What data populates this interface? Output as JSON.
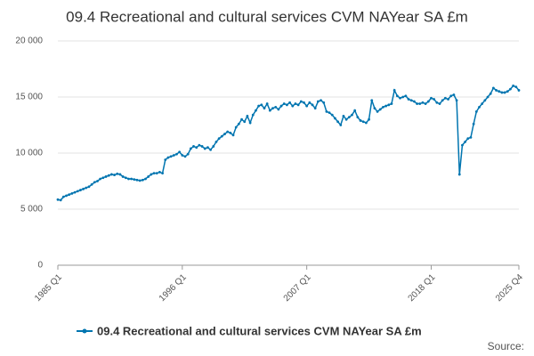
{
  "chart_data": {
    "type": "line",
    "title": "09.4 Recreational and cultural services CVM NAYear SA £m",
    "source": "Source:",
    "categories": [
      "1985 Q1",
      null,
      null,
      null,
      null,
      null,
      null,
      null,
      null,
      null,
      null,
      null,
      null,
      null,
      null,
      null,
      null,
      null,
      null,
      null,
      null,
      null,
      null,
      null,
      null,
      null,
      null,
      null,
      null,
      null,
      null,
      null,
      null,
      null,
      null,
      null,
      null,
      null,
      null,
      null,
      null,
      null,
      null,
      null,
      "1996 Q1",
      null,
      null,
      null,
      null,
      null,
      null,
      null,
      null,
      null,
      null,
      null,
      null,
      null,
      null,
      null,
      null,
      null,
      null,
      null,
      null,
      null,
      null,
      null,
      null,
      null,
      null,
      null,
      null,
      null,
      null,
      null,
      null,
      null,
      null,
      null,
      null,
      null,
      null,
      null,
      null,
      null,
      null,
      null,
      "2007 Q1",
      null,
      null,
      null,
      null,
      null,
      null,
      null,
      null,
      null,
      null,
      null,
      null,
      null,
      null,
      null,
      null,
      null,
      null,
      null,
      null,
      null,
      null,
      null,
      null,
      null,
      null,
      null,
      null,
      null,
      null,
      null,
      null,
      null,
      null,
      null,
      null,
      null,
      null,
      null,
      null,
      null,
      null,
      null,
      "2018 Q1",
      null,
      null,
      null,
      null,
      null,
      null,
      null,
      null,
      null,
      null,
      null,
      null,
      null,
      null,
      null,
      null,
      null,
      null,
      null,
      null,
      null,
      null,
      null,
      null,
      null,
      null,
      null,
      null,
      null,
      null,
      "2025 Q4"
    ],
    "series": [
      {
        "name": "09.4 Recreational and cultural services CVM NAYear SA £m",
        "color": "#0075b0",
        "values": [
          5850,
          5800,
          6100,
          6200,
          6300,
          6400,
          6500,
          6600,
          6700,
          6800,
          6900,
          7000,
          7200,
          7400,
          7500,
          7700,
          7800,
          7900,
          8000,
          8100,
          8050,
          8150,
          8100,
          7900,
          7800,
          7700,
          7700,
          7650,
          7600,
          7550,
          7600,
          7700,
          7900,
          8100,
          8200,
          8200,
          8300,
          8200,
          9400,
          9600,
          9700,
          9800,
          9900,
          10100,
          9800,
          9700,
          9900,
          10400,
          10600,
          10500,
          10700,
          10600,
          10400,
          10500,
          10300,
          10600,
          11000,
          11300,
          11500,
          11700,
          11900,
          11800,
          11600,
          12300,
          12600,
          13000,
          12800,
          13300,
          12700,
          13400,
          13800,
          14200,
          14300,
          14000,
          14400,
          13800,
          14000,
          14100,
          13900,
          14200,
          14400,
          14300,
          14500,
          14200,
          14400,
          14300,
          14600,
          14500,
          14200,
          14500,
          14300,
          14000,
          14600,
          14700,
          14500,
          13700,
          13600,
          13400,
          13100,
          12800,
          12500,
          13300,
          13000,
          13200,
          13400,
          13800,
          13200,
          12900,
          12800,
          12700,
          13000,
          14700,
          14000,
          13700,
          13900,
          14100,
          14200,
          14300,
          14400,
          15600,
          15100,
          14900,
          15000,
          15100,
          14800,
          14700,
          14600,
          14400,
          14400,
          14500,
          14400,
          14600,
          14900,
          14800,
          14500,
          14400,
          14700,
          14900,
          14800,
          15100,
          15200,
          14700,
          8100,
          10700,
          11000,
          11300,
          11400,
          12600,
          13700,
          14100,
          14400,
          14700,
          15000,
          15300,
          15800,
          15600,
          15500,
          15400,
          15400,
          15500,
          15700,
          16000,
          15900,
          15600
        ]
      }
    ],
    "ylim": [
      0,
      20000
    ],
    "yticks": [
      0,
      {
        "value": 5000,
        "label": "5 000"
      },
      {
        "value": 10000,
        "label": "10 000"
      },
      {
        "value": 15000,
        "label": "15 000"
      },
      {
        "value": 20000,
        "label": "20 000"
      }
    ],
    "grid": true
  }
}
